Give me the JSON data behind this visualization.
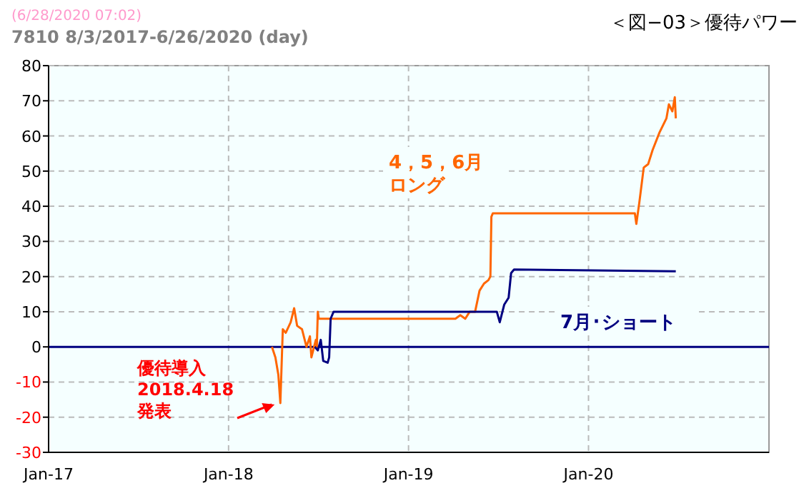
{
  "chart_data": {
    "type": "line",
    "title": "＜図−03＞優待パワー",
    "subtitle": "7810 8/3/2017-6/26/2020 (day)",
    "annotations": [
      "(6/28/2020 07:02)",
      {
        "text": "優待導入\n2018.4.18\n発表",
        "x": "2018-04-16",
        "y": -16
      }
    ],
    "series": [
      {
        "name": "4，5，6月ロング",
        "color": "#ff6600",
        "x": [
          "2018-03-30",
          "2018-04-06",
          "2018-04-12",
          "2018-04-16",
          "2018-04-21",
          "2018-04-27",
          "2018-05-07",
          "2018-05-14",
          "2018-05-20",
          "2018-05-30",
          "2018-06-08",
          "2018-06-15",
          "2018-06-18",
          "2018-06-27",
          "2018-06-29",
          "2018-07-01",
          "2018-07-03",
          "2019-04-06",
          "2019-04-16",
          "2019-04-26",
          "2019-05-05",
          "2019-05-16",
          "2019-05-25",
          "2019-06-03",
          "2019-06-12",
          "2019-06-16",
          "2019-06-18",
          "2019-06-21",
          "2020-04-04",
          "2020-04-07",
          "2020-04-13",
          "2020-04-22",
          "2020-05-01",
          "2020-05-10",
          "2020-05-24",
          "2020-06-07",
          "2020-06-12",
          "2020-06-19",
          "2020-06-24",
          "2020-06-26"
        ],
        "values": [
          0,
          -3,
          -8,
          -16,
          5,
          4,
          7,
          11,
          6,
          5,
          0,
          3,
          -3,
          2,
          0,
          10,
          8,
          8,
          9,
          8,
          10,
          10,
          16,
          18,
          19,
          20,
          37,
          38,
          38,
          35,
          41,
          51,
          52,
          56,
          61,
          65,
          69,
          67,
          71,
          65
        ]
      },
      {
        "name": "7月･ショート",
        "color": "#000080",
        "x": [
          "2018-06-25",
          "2018-07-01",
          "2018-07-07",
          "2018-07-12",
          "2018-07-21",
          "2018-07-24",
          "2018-07-27",
          "2018-08-02",
          "2019-06-29",
          "2019-07-05",
          "2019-07-14",
          "2019-07-23",
          "2019-07-28",
          "2019-08-03",
          "2020-06-26"
        ],
        "values": [
          0,
          -1,
          2,
          -4,
          -4.5,
          -3,
          8,
          10,
          10,
          7,
          12,
          14,
          21,
          22,
          21.5
        ]
      }
    ],
    "xlim": [
      "2017-01-01",
      "2021-01-01"
    ],
    "xticks": [
      {
        "value": "2017-01-01",
        "label": "Jan-17"
      },
      {
        "value": "2018-01-01",
        "label": "Jan-18"
      },
      {
        "value": "2019-01-01",
        "label": "Jan-19"
      },
      {
        "value": "2020-01-01",
        "label": "Jan-20"
      }
    ],
    "ylim": [
      -30,
      80
    ],
    "yticks": [
      -30,
      -20,
      -10,
      0,
      10,
      20,
      30,
      40,
      50,
      60,
      70,
      80
    ],
    "ref_lines": [
      {
        "axis": "y",
        "value": 0,
        "color": "#000080"
      }
    ],
    "grid": true,
    "line_style": "solid"
  }
}
